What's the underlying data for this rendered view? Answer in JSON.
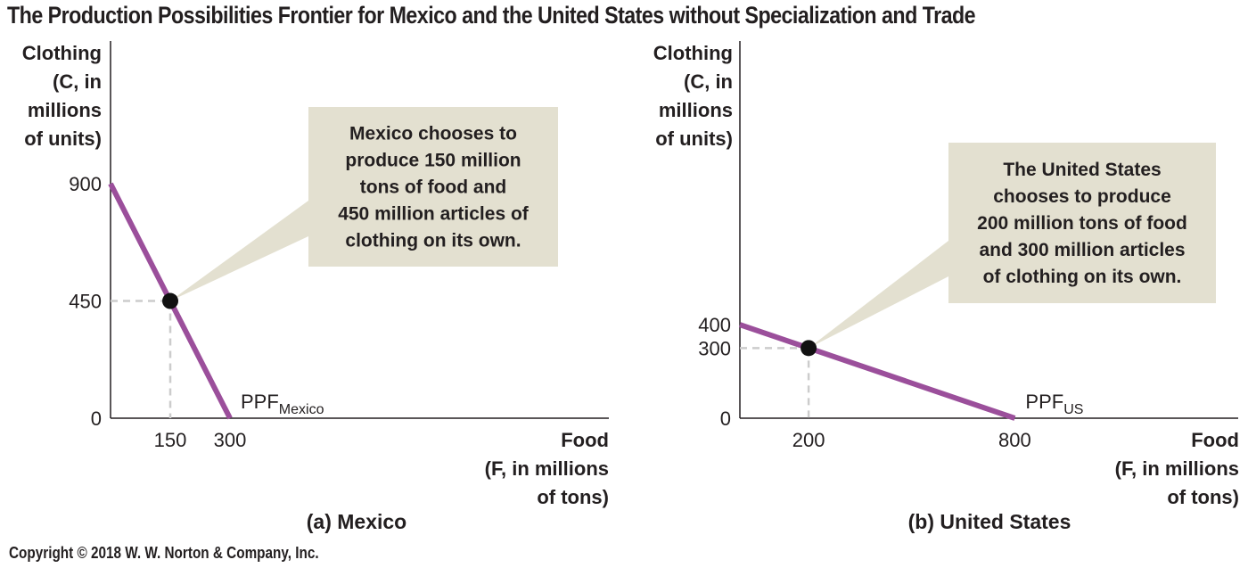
{
  "title": "The Production Possibilities Frontier for Mexico and the United States without Specialization and Trade",
  "copyright": "Copyright © 2018 W. W. Norton & Company, Inc.",
  "colors": {
    "ppf": "#9b4f9b",
    "callout_bg": "#e3e0d0",
    "axis": "#231f20",
    "guide": "#cccccc",
    "point": "#111111"
  },
  "chart_data": [
    {
      "type": "line",
      "panel_title": "(a) Mexico",
      "ylabel": [
        "Clothing",
        "(C, in",
        "millions",
        "of units)"
      ],
      "xlabel": [
        "Food",
        "(F, in millions",
        "of tons)"
      ],
      "xlim": [
        0,
        1000
      ],
      "ylim": [
        0,
        1000
      ],
      "x_ticks": [
        150,
        300
      ],
      "x_tick_labels": [
        "150",
        "300"
      ],
      "y_ticks": [
        0,
        450,
        900
      ],
      "y_tick_labels": [
        "0",
        "450",
        "900"
      ],
      "series": [
        {
          "name": "PPF",
          "name_sub": "Mexico",
          "x": [
            0,
            300
          ],
          "y": [
            900,
            0
          ]
        }
      ],
      "point": {
        "x": 150,
        "y": 450
      },
      "callout": [
        "Mexico chooses to",
        "produce 150 million",
        "tons of food and",
        "450 million articles of",
        "clothing on its own."
      ]
    },
    {
      "type": "line",
      "panel_title": "(b) United States",
      "ylabel": [
        "Clothing",
        "(C, in",
        "millions",
        "of units)"
      ],
      "xlabel": [
        "Food",
        "(F, in millions",
        "of tons)"
      ],
      "xlim": [
        0,
        1000
      ],
      "ylim": [
        0,
        1000
      ],
      "x_ticks": [
        200,
        800
      ],
      "x_tick_labels": [
        "200",
        "800"
      ],
      "y_ticks": [
        0,
        300,
        400
      ],
      "y_tick_labels": [
        "0",
        "300",
        "400"
      ],
      "series": [
        {
          "name": "PPF",
          "name_sub": "US",
          "x": [
            0,
            800
          ],
          "y": [
            400,
            0
          ]
        }
      ],
      "point": {
        "x": 200,
        "y": 300
      },
      "callout": [
        "The United States",
        "chooses to produce",
        "200 million tons of food",
        "and 300 million articles",
        "of clothing on its own."
      ]
    }
  ]
}
